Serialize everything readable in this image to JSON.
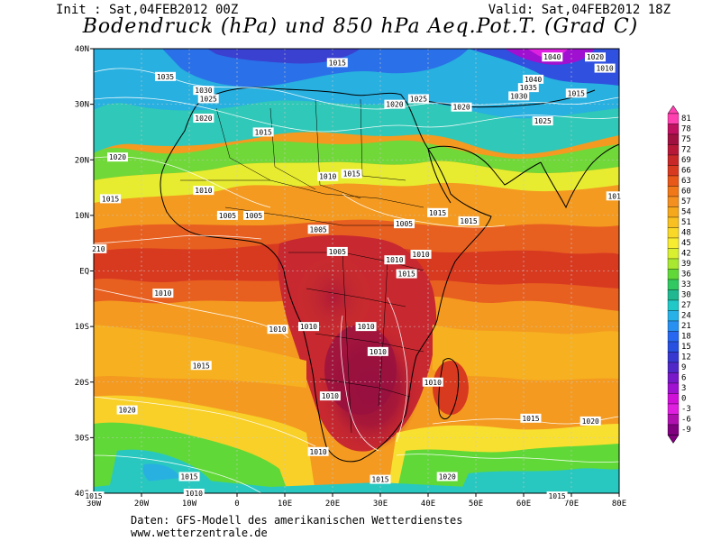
{
  "header": {
    "init": "Init : Sat,04FEB2012 00Z",
    "valid": "Valid: Sat,04FEB2012 18Z",
    "title": "Bodendruck (hPa) und 850 hPa Aeq.Pot.T. (Grad C)"
  },
  "axes": {
    "lat_labels": [
      "40N",
      "30N",
      "20N",
      "10N",
      "EQ",
      "10S",
      "20S",
      "30S",
      "40S"
    ],
    "lon_labels": [
      "30W",
      "20W",
      "10W",
      "0",
      "10E",
      "20E",
      "30E",
      "40E",
      "50E",
      "60E",
      "70E",
      "80E"
    ]
  },
  "colorbar": {
    "levels": [
      "81",
      "78",
      "75",
      "72",
      "69",
      "66",
      "63",
      "60",
      "57",
      "54",
      "51",
      "48",
      "45",
      "42",
      "39",
      "36",
      "33",
      "30",
      "27",
      "24",
      "21",
      "18",
      "15",
      "12",
      "9",
      "6",
      "3",
      "0",
      "-3",
      "-6",
      "-9"
    ],
    "colors": [
      "#ff40b0",
      "#c01060",
      "#a01040",
      "#b81838",
      "#c82828",
      "#d83a20",
      "#e85818",
      "#f07818",
      "#f49020",
      "#f6a81c",
      "#f8c020",
      "#fad828",
      "#f8ec30",
      "#d8f030",
      "#a8e830",
      "#60d838",
      "#30c860",
      "#20b890",
      "#20c8c8",
      "#28b0e8",
      "#2890f0",
      "#2868f0",
      "#2850e0",
      "#3838d0",
      "#5028c8",
      "#7818c8",
      "#a010d0",
      "#d010d8",
      "#e020e0",
      "#b010b0",
      "#800080"
    ]
  },
  "isobar_labels": [
    {
      "text": "1035",
      "lon": -15,
      "lat": 35
    },
    {
      "text": "1030",
      "lon": -7,
      "lat": 32.5
    },
    {
      "text": "1025",
      "lon": -6,
      "lat": 31
    },
    {
      "text": "1020",
      "lon": -7,
      "lat": 27.5
    },
    {
      "text": "1015",
      "lon": 5.5,
      "lat": 25
    },
    {
      "text": "1015",
      "lon": 21,
      "lat": 37.5
    },
    {
      "text": "1020",
      "lon": 33,
      "lat": 30
    },
    {
      "text": "1025",
      "lon": 38,
      "lat": 31
    },
    {
      "text": "1020",
      "lon": 47,
      "lat": 29.5
    },
    {
      "text": "1030",
      "lon": 59,
      "lat": 31.5
    },
    {
      "text": "1035",
      "lon": 61,
      "lat": 33
    },
    {
      "text": "1040",
      "lon": 62,
      "lat": 34.5
    },
    {
      "text": "1040",
      "lon": 66,
      "lat": 38.5
    },
    {
      "text": "1020",
      "lon": 75,
      "lat": 38.5
    },
    {
      "text": "1010",
      "lon": 77,
      "lat": 36.5
    },
    {
      "text": "1015",
      "lon": 71,
      "lat": 32
    },
    {
      "text": "1025",
      "lon": 64,
      "lat": 27
    },
    {
      "text": "1020",
      "lon": -25,
      "lat": 20.5
    },
    {
      "text": "1015",
      "lon": -26.5,
      "lat": 13
    },
    {
      "text": "1010",
      "lon": -7,
      "lat": 14.5
    },
    {
      "text": "1010",
      "lon": 19,
      "lat": 17
    },
    {
      "text": "1015",
      "lon": 24,
      "lat": 17.5
    },
    {
      "text": "1005",
      "lon": -2,
      "lat": 10
    },
    {
      "text": "1005",
      "lon": 3.5,
      "lat": 10
    },
    {
      "text": "1015",
      "lon": 42,
      "lat": 10.5
    },
    {
      "text": "1015",
      "lon": 48.5,
      "lat": 9
    },
    {
      "text": "1005",
      "lon": 35,
      "lat": 8.5
    },
    {
      "text": "1005",
      "lon": 17,
      "lat": 7.5
    },
    {
      "text": "1005",
      "lon": 21,
      "lat": 3.5
    },
    {
      "text": "1010",
      "lon": 33,
      "lat": 2
    },
    {
      "text": "1010",
      "lon": 38.5,
      "lat": 3
    },
    {
      "text": "1015",
      "lon": 35.5,
      "lat": -0.5
    },
    {
      "text": "210",
      "lon": -29,
      "lat": 4
    },
    {
      "text": "1010",
      "lon": -15.5,
      "lat": -4
    },
    {
      "text": "1010",
      "lon": 8.5,
      "lat": -10.5
    },
    {
      "text": "1010",
      "lon": 15,
      "lat": -10
    },
    {
      "text": "1010",
      "lon": 27,
      "lat": -10
    },
    {
      "text": "1010",
      "lon": 29.5,
      "lat": -14.5
    },
    {
      "text": "1015",
      "lon": -7.5,
      "lat": -17
    },
    {
      "text": "1010",
      "lon": 41,
      "lat": -20
    },
    {
      "text": "1010",
      "lon": 19.5,
      "lat": -22.5
    },
    {
      "text": "1020",
      "lon": -23,
      "lat": -25
    },
    {
      "text": "1015",
      "lon": 61.5,
      "lat": -26.5
    },
    {
      "text": "1020",
      "lon": 74,
      "lat": -27
    },
    {
      "text": "1010",
      "lon": 17,
      "lat": -32.5
    },
    {
      "text": "1015",
      "lon": 30,
      "lat": -37.5
    },
    {
      "text": "1020",
      "lon": 44,
      "lat": -37
    },
    {
      "text": "1015",
      "lon": -10,
      "lat": -37
    },
    {
      "text": "1010",
      "lon": -9,
      "lat": -40
    },
    {
      "text": "1015",
      "lon": 67,
      "lat": -40.5
    },
    {
      "text": "1015",
      "lon": -30,
      "lat": -40.5
    },
    {
      "text": "101",
      "lon": 79,
      "lat": 13.5
    }
  ],
  "credits": {
    "line1": "Daten: GFS-Modell des amerikanischen Wetterdienstes",
    "line2": "www.wetterzentrale.de"
  }
}
